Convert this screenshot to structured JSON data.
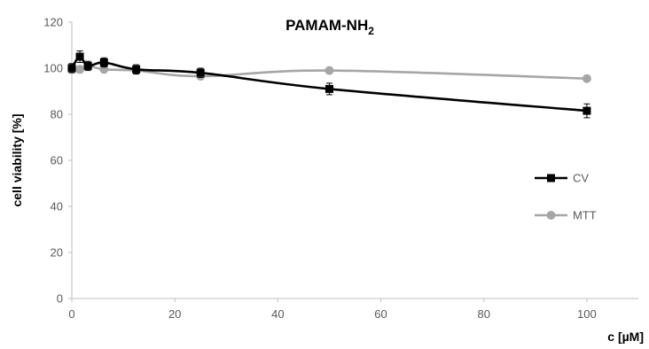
{
  "chart_data": {
    "type": "line",
    "title": "PAMAM-NH",
    "title_subscript": "2",
    "xlabel": "c [µM]",
    "ylabel": "cell viability [%]",
    "xlim": [
      0,
      110
    ],
    "ylim": [
      0,
      120
    ],
    "x_ticks": [
      0,
      20,
      40,
      60,
      80,
      100
    ],
    "y_ticks": [
      0,
      20,
      40,
      60,
      80,
      100,
      120
    ],
    "grid": false,
    "legend_position": "right",
    "series": [
      {
        "name": "CV",
        "color": "#000000",
        "marker": "square",
        "x": [
          0,
          1.56,
          3.125,
          6.25,
          12.5,
          25,
          50,
          100
        ],
        "y": [
          100,
          105,
          101,
          102.5,
          99.5,
          98,
          91,
          81.5
        ],
        "err": [
          2,
          2.5,
          2,
          2,
          2,
          2,
          2.5,
          3
        ]
      },
      {
        "name": "MTT",
        "color": "#a6a6a6",
        "marker": "circle",
        "x": [
          0,
          1.56,
          3.125,
          6.25,
          12.5,
          25,
          50,
          100
        ],
        "y": [
          100,
          99.5,
          101,
          99.5,
          99,
          96.5,
          99,
          95.5
        ],
        "err": [
          1.5,
          1.5,
          1.5,
          1,
          1,
          1,
          1,
          1
        ]
      }
    ]
  }
}
